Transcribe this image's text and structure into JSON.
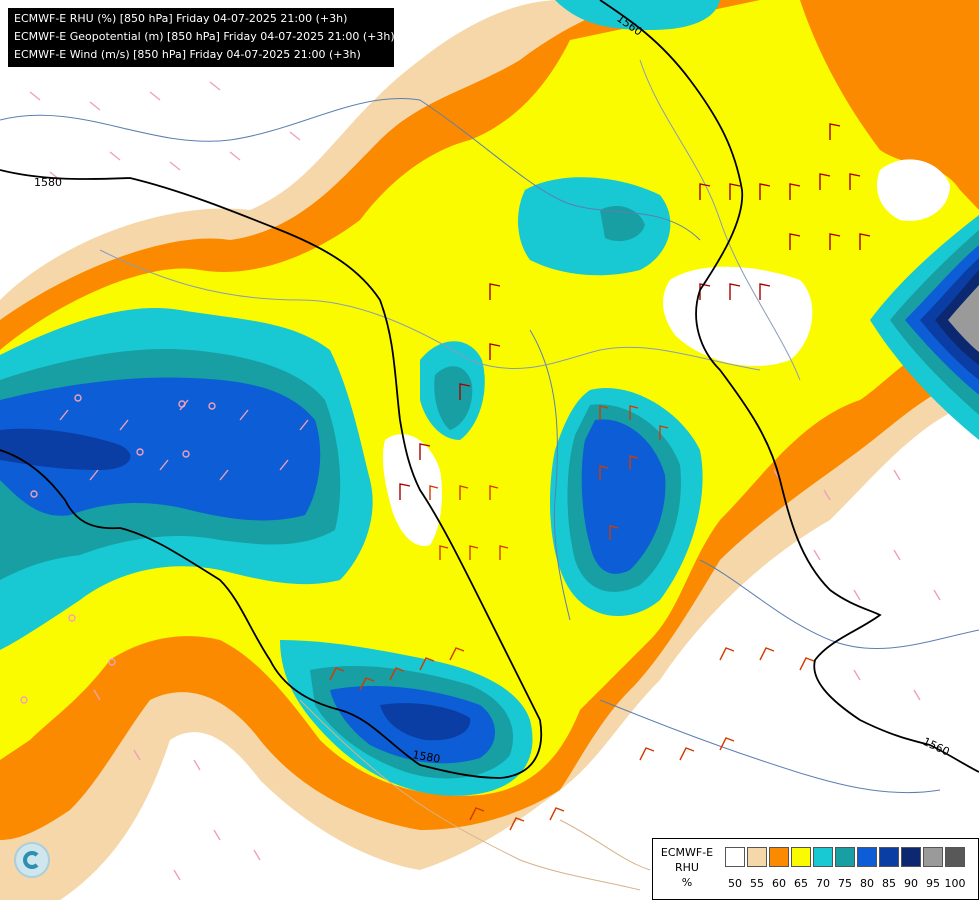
{
  "header": {
    "lines": [
      "ECMWF-E RHU (%) [850 hPa] Friday 04-07-2025 21:00 (+3h)",
      "ECMWF-E Geopotential (m) [850 hPa] Friday 04-07-2025 21:00 (+3h)",
      "ECMWF-E Wind (m/s) [850 hPa] Friday 04-07-2025 21:00 (+3h)"
    ]
  },
  "legend": {
    "title": [
      "ECMWF-E",
      "RHU",
      "%"
    ],
    "levels": [
      "50",
      "55",
      "60",
      "65",
      "70",
      "75",
      "80",
      "85",
      "90",
      "95",
      "100"
    ],
    "colors": [
      "#ffffff",
      "#f5d7aa",
      "#fb8a00",
      "#fbfb00",
      "#18c8d2",
      "#179fa3",
      "#0d5ed6",
      "#0a3ea4",
      "#0b2870",
      "#9a9a9a",
      "#585858"
    ]
  },
  "contours": {
    "labels": [
      "1560",
      "1580",
      "1580",
      "1560"
    ]
  },
  "logo": "ecmwf-logo"
}
